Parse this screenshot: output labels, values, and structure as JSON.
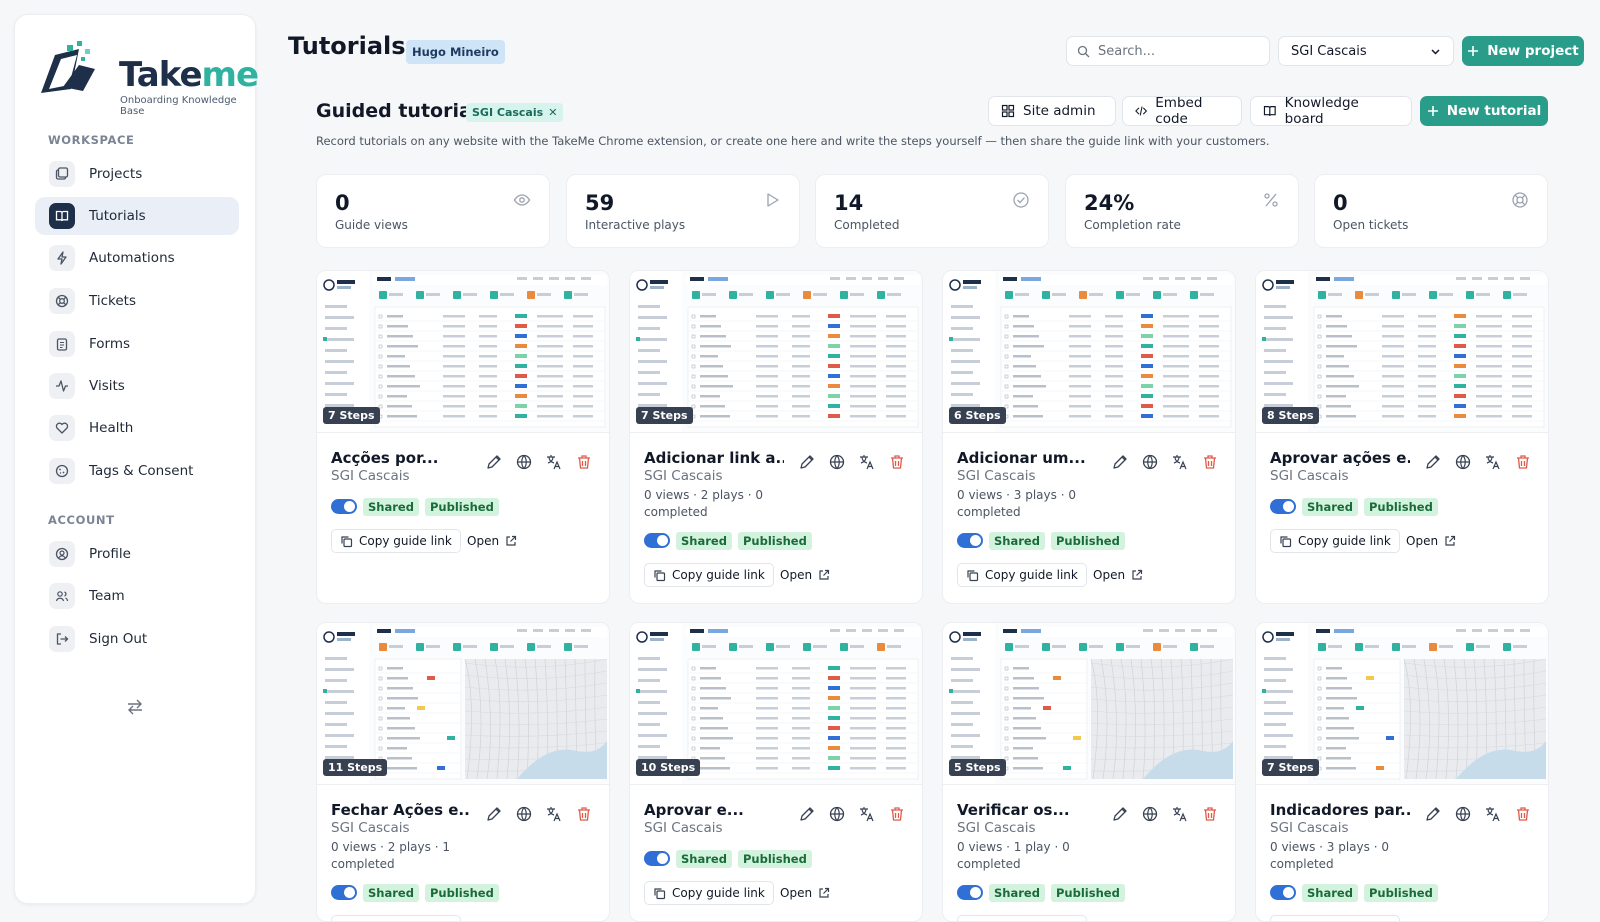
{
  "brand": {
    "name_a": "Take",
    "name_b": "me",
    "tagline": "Onboarding Knowledge Base"
  },
  "sidebar": {
    "workspace_label": "WORKSPACE",
    "account_label": "ACCOUNT",
    "workspace_items": [
      {
        "label": "Projects",
        "icon": "folder-icon"
      },
      {
        "label": "Tutorials",
        "icon": "book-icon",
        "active": true
      },
      {
        "label": "Automations",
        "icon": "bolt-icon"
      },
      {
        "label": "Tickets",
        "icon": "lifebuoy-icon"
      },
      {
        "label": "Forms",
        "icon": "clipboard-icon"
      },
      {
        "label": "Visits",
        "icon": "activity-icon"
      },
      {
        "label": "Health",
        "icon": "heart-icon"
      },
      {
        "label": "Tags & Consent",
        "icon": "cookie-icon"
      }
    ],
    "account_items": [
      {
        "label": "Profile",
        "icon": "user-circle-icon"
      },
      {
        "label": "Team",
        "icon": "users-icon"
      },
      {
        "label": "Sign Out",
        "icon": "logout-icon"
      }
    ]
  },
  "header": {
    "title": "Tutorials",
    "user": "Hugo Mineiro",
    "search_placeholder": "Search...",
    "project_selected": "SGI Cascais",
    "new_project": "New project"
  },
  "section": {
    "title": "Guided tutorials",
    "filter": "SGI Cascais",
    "site_admin": "Site admin",
    "embed_code": "Embed code",
    "knowledge_board": "Knowledge board",
    "new_tutorial": "New tutorial",
    "description": "Record tutorials on any website with the TakeMe Chrome extension, or create one here and write the steps yourself — then share the guide link with your customers."
  },
  "stats": [
    {
      "value": "0",
      "label": "Guide views",
      "icon": "eye-icon"
    },
    {
      "value": "59",
      "label": "Interactive plays",
      "icon": "play-icon"
    },
    {
      "value": "14",
      "label": "Completed",
      "icon": "check-circle-icon"
    },
    {
      "value": "24%",
      "label": "Completion rate",
      "icon": "percent-icon"
    },
    {
      "value": "0",
      "label": "Open tickets",
      "icon": "lifebuoy-icon"
    }
  ],
  "labels": {
    "shared": "Shared",
    "published": "Published",
    "copy_link": "Copy guide link",
    "open": "Open"
  },
  "tutorials": [
    {
      "steps": "7 Steps",
      "title": "Acções por...",
      "project": "SGI Cascais",
      "meta": ""
    },
    {
      "steps": "7 Steps",
      "title": "Adicionar link a...",
      "project": "SGI Cascais",
      "meta": "0 views · 2 plays · 0 completed"
    },
    {
      "steps": "6 Steps",
      "title": "Adicionar um...",
      "project": "SGI Cascais",
      "meta": "0 views · 3 plays · 0 completed"
    },
    {
      "steps": "8 Steps",
      "title": "Aprovar ações e...",
      "project": "SGI Cascais",
      "meta": ""
    },
    {
      "steps": "11 Steps",
      "title": "Fechar Ações e...",
      "project": "SGI Cascais",
      "meta": "0 views · 2 plays · 1 completed"
    },
    {
      "steps": "10 Steps",
      "title": "Aprovar e...",
      "project": "SGI Cascais",
      "meta": ""
    },
    {
      "steps": "5 Steps",
      "title": "Verificar os...",
      "project": "SGI Cascais",
      "meta": "0 views · 1 play · 0 completed"
    },
    {
      "steps": "7 Steps",
      "title": "Indicadores par...",
      "project": "SGI Cascais",
      "meta": "0 views · 3 plays · 0 completed"
    }
  ],
  "colors": {
    "accent": "#2a9d8a",
    "navy": "#1e2f4a",
    "toggle": "#2f6fd6",
    "published_bg": "#d4f3de"
  }
}
